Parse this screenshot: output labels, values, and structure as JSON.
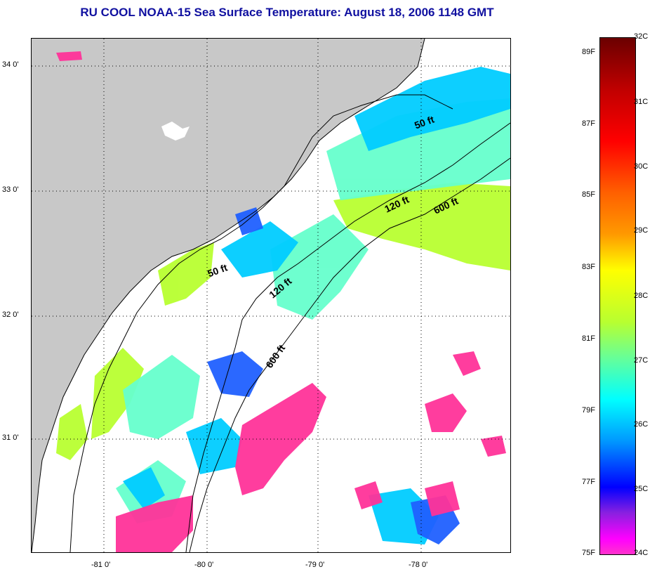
{
  "title": "RU COOL  NOAA-15  Sea Surface Temperature:  August 18, 2006 1148 GMT",
  "axes": {
    "y_ticks": [
      "34 0'",
      "33 0'",
      "32 0'",
      "31 0'"
    ],
    "x_ticks": [
      "-81 0'",
      "-80 0'",
      "-79 0'",
      "-78 0'"
    ]
  },
  "contours": {
    "c50_north": "50 ft",
    "c120_north": "120 ft",
    "c600_north": "600 ft",
    "c50_south": "50 ft",
    "c120_south": "120 ft",
    "c600_south": "600 ft"
  },
  "colorbar": {
    "fahrenheit": [
      "89F",
      "87F",
      "85F",
      "83F",
      "81F",
      "79F",
      "77F",
      "75F"
    ],
    "celsius": [
      "32C",
      "31C",
      "30C",
      "29C",
      "28C",
      "27C",
      "26C",
      "25C",
      "24C"
    ],
    "colors": [
      "#6b0000",
      "#ff0000",
      "#ff9900",
      "#ffff00",
      "#66ff99",
      "#00ffff",
      "#0099ff",
      "#0000ff",
      "#ff33cc"
    ]
  },
  "legend_colors": {
    "land": "#c8c8c8",
    "cloud": "#ffffff",
    "warm": "#b8ff30",
    "mid": "#66ffcc",
    "cool": "#00ccff",
    "cold": "#2060ff",
    "coldest": "#ff3399"
  }
}
